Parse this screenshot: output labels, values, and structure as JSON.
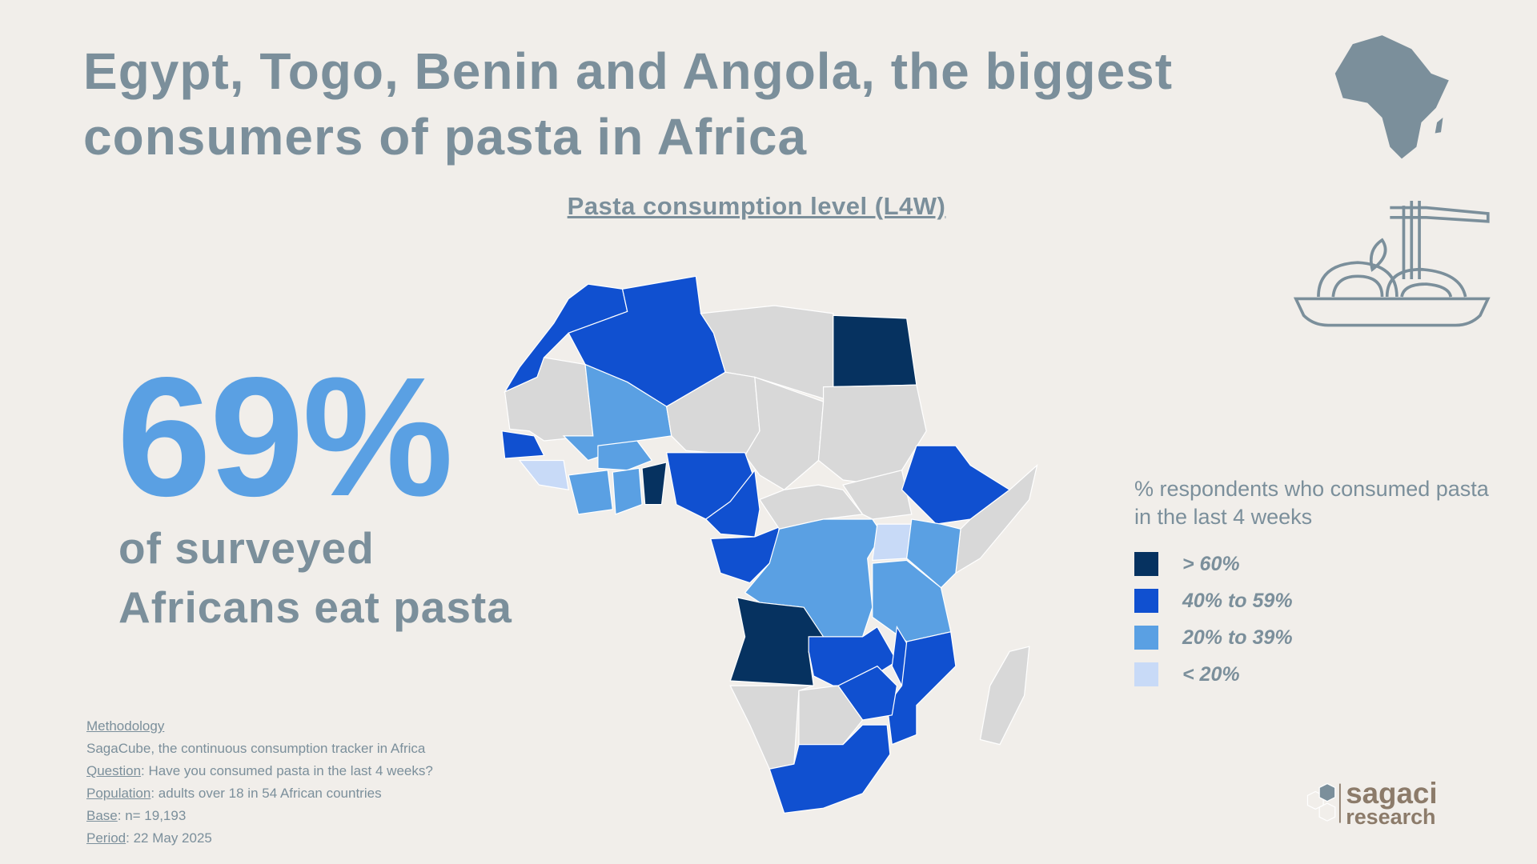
{
  "title": "Egypt, Togo, Benin and Angola, the biggest consumers of pasta in Africa",
  "subtitle": "Pasta consumption level (L4W)",
  "headline": {
    "value": "69%",
    "line1": "of surveyed",
    "line2": "Africans eat pasta"
  },
  "methodology": {
    "heading": "Methodology",
    "description": "SagaCube, the continuous consumption tracker in Africa",
    "question_label": "Question",
    "question": ": Have you consumed pasta in the last 4 weeks?",
    "population_label": "Population",
    "population": ": adults over 18 in 54 African countries",
    "base_label": "Base",
    "base": ": n= 19,193",
    "period_label": "Period",
    "period": ": 22 May 2025"
  },
  "legend": {
    "title": "% respondents who consumed pasta in the last 4 weeks",
    "items": [
      {
        "label": "> 60%",
        "color": "#063260"
      },
      {
        "label": "40% to 59%",
        "color": "#1050d0"
      },
      {
        "label": "20% to 39%",
        "color": "#5aa0e3"
      },
      {
        "label": "< 20%",
        "color": "#c8daf7"
      }
    ],
    "no_data_color": "#d8d8d8"
  },
  "chart_data": {
    "type": "choropleth map",
    "title": "Pasta consumption level (L4W)",
    "categories": [
      "> 60%",
      "40% to 59%",
      "20% to 39%",
      "< 20%"
    ]
  },
  "icons": [
    "africa-map-icon",
    "pasta-bowl-icon",
    "sagaci-logo-icon"
  ],
  "logo": {
    "line1": "sagaci",
    "line2": "research"
  }
}
